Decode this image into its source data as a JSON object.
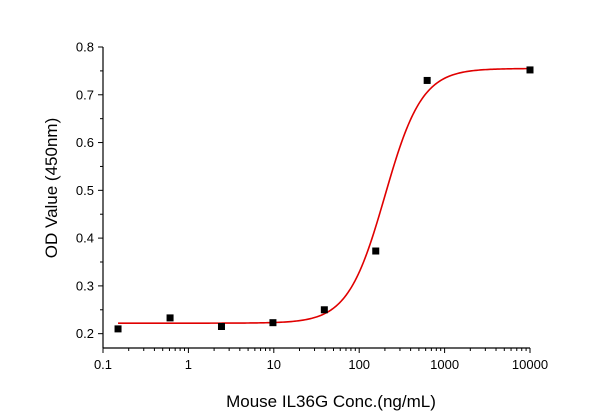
{
  "chart_data": {
    "type": "scatter",
    "xlabel": "Mouse IL36G Conc.(ng/mL)",
    "ylabel": "OD Value (450nm)",
    "xscale": "log",
    "xlim": [
      0.1,
      10000
    ],
    "ylim": [
      0.17,
      0.8
    ],
    "x_ticks": [
      0.1,
      1,
      10,
      100,
      1000,
      10000
    ],
    "x_tick_labels": [
      "0.1",
      "1",
      "10",
      "100",
      "1000",
      "10000"
    ],
    "y_ticks": [
      0.2,
      0.3,
      0.4,
      0.5,
      0.6,
      0.7,
      0.8
    ],
    "y_tick_labels": [
      "0.2",
      "0.3",
      "0.4",
      "0.5",
      "0.6",
      "0.7",
      "0.8"
    ],
    "grid": false,
    "series": [
      {
        "type": "scatter",
        "marker": "square",
        "color": "#000000",
        "x": [
          0.15,
          0.61,
          2.44,
          9.77,
          39.06,
          156.25,
          625,
          10000
        ],
        "y": [
          0.21,
          0.233,
          0.215,
          0.223,
          0.25,
          0.373,
          0.73,
          0.752
        ]
      },
      {
        "type": "line",
        "fit": "four-parameter logistic",
        "color": "#e00000",
        "params": {
          "bottom": 0.222,
          "top": 0.755,
          "ec50": 200,
          "hill": 2.0
        },
        "x_range": [
          0.15,
          10000
        ]
      }
    ]
  }
}
